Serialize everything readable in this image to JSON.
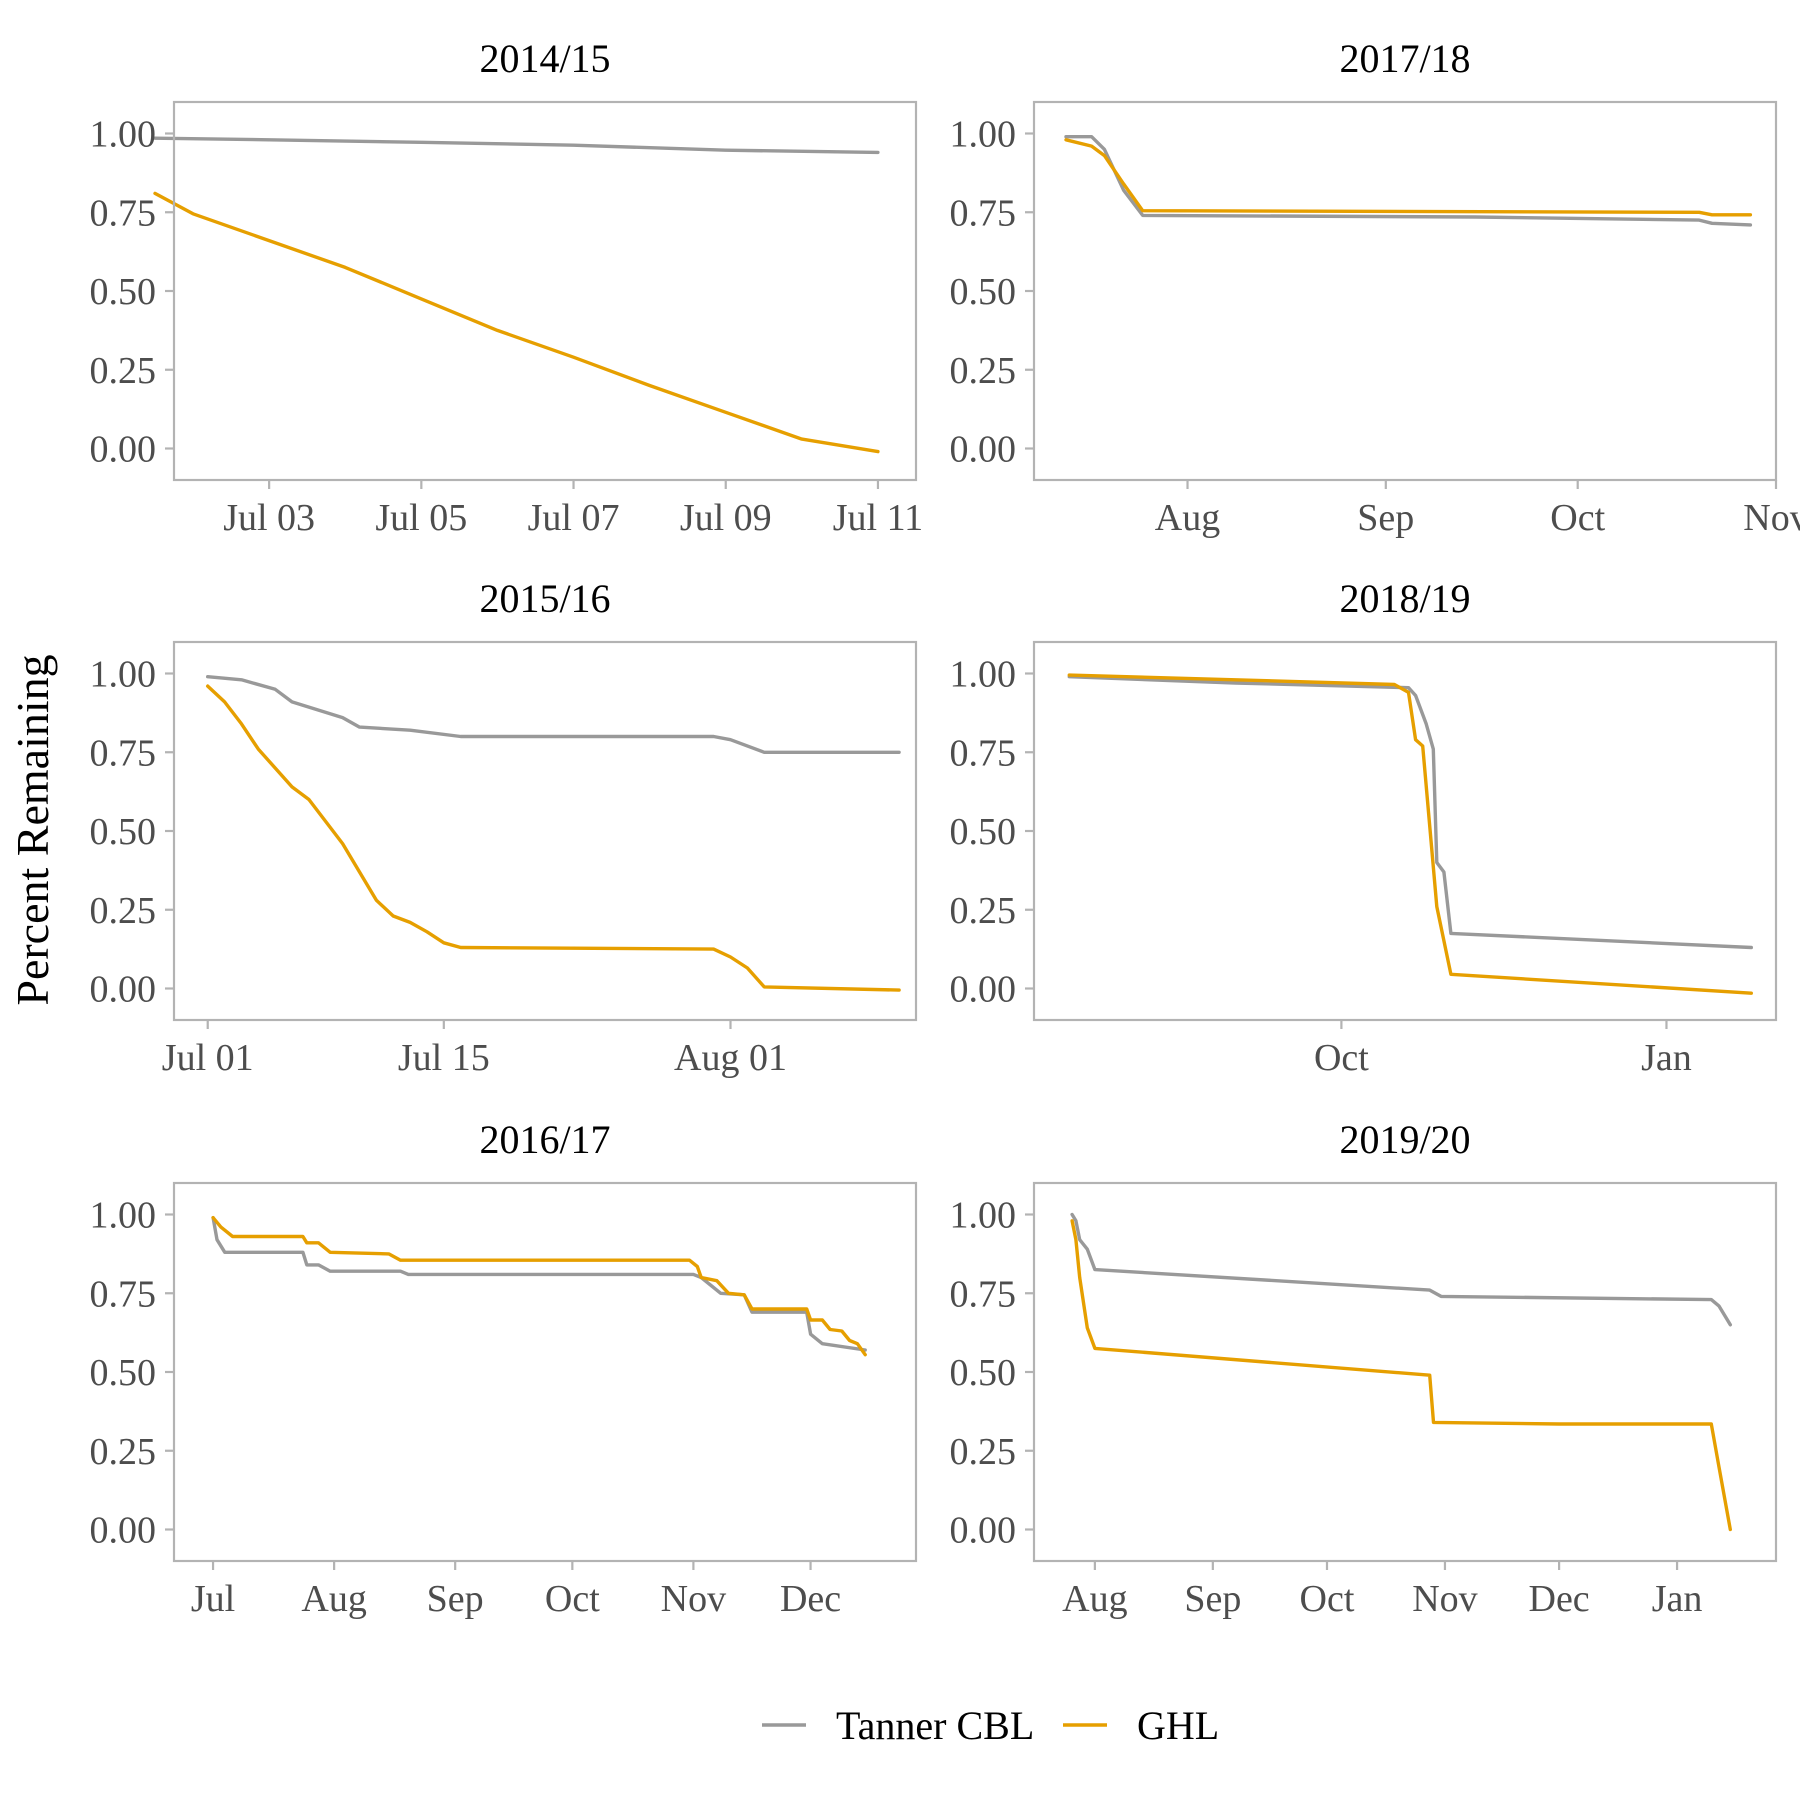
{
  "y_axis_label": "Percent Remaining",
  "colors": {
    "tanner_cbl": "#999999",
    "ghl": "#E69F00"
  },
  "legend": [
    {
      "label": "Tanner CBL",
      "color": "#999999"
    },
    {
      "label": "GHL",
      "color": "#E69F00"
    }
  ],
  "chart_data": [
    {
      "type": "line",
      "title": "2014/15",
      "x_type": "date",
      "xlim": [
        "2014-07-01T18:00",
        "2014-07-11T12:00"
      ],
      "ylim": [
        -0.1,
        1.1
      ],
      "xticks": [
        {
          "label": "Jul 03",
          "date": "2014-07-03"
        },
        {
          "label": "Jul 05",
          "date": "2014-07-05"
        },
        {
          "label": "Jul 07",
          "date": "2014-07-07"
        },
        {
          "label": "Jul 09",
          "date": "2014-07-09"
        },
        {
          "label": "Jul 11",
          "date": "2014-07-11"
        }
      ],
      "yticks": [
        "1.00",
        "0.75",
        "0.50",
        "0.25",
        "0.00"
      ],
      "series": [
        {
          "name": "Tanner CBL",
          "x": [
            "2014-07-01T12:00",
            "2014-07-03",
            "2014-07-05",
            "2014-07-07",
            "2014-07-09",
            "2014-07-11"
          ],
          "y": [
            0.985,
            0.98,
            0.972,
            0.963,
            0.947,
            0.94
          ]
        },
        {
          "name": "GHL",
          "x": [
            "2014-07-01T12:00",
            "2014-07-02",
            "2014-07-03",
            "2014-07-04",
            "2014-07-05",
            "2014-07-06",
            "2014-07-07",
            "2014-07-08",
            "2014-07-09",
            "2014-07-10",
            "2014-07-11"
          ],
          "y": [
            0.81,
            0.745,
            0.66,
            0.575,
            0.475,
            0.375,
            0.29,
            0.2,
            0.115,
            0.03,
            -0.01
          ]
        }
      ]
    },
    {
      "type": "line",
      "title": "2017/18",
      "x_type": "date",
      "xlim": [
        "2017-07-08",
        "2017-11-01"
      ],
      "ylim": [
        -0.1,
        1.1
      ],
      "xticks": [
        {
          "label": "Aug",
          "date": "2017-08-01"
        },
        {
          "label": "Sep",
          "date": "2017-09-01"
        },
        {
          "label": "Oct",
          "date": "2017-10-01"
        },
        {
          "label": "Nov",
          "date": "2017-11-01"
        }
      ],
      "yticks": [
        "1.00",
        "0.75",
        "0.50",
        "0.25",
        "0.00"
      ],
      "series": [
        {
          "name": "Tanner CBL",
          "x": [
            "2017-07-13",
            "2017-07-17",
            "2017-07-19",
            "2017-07-22",
            "2017-07-25",
            "2017-09-15",
            "2017-10-20",
            "2017-10-22",
            "2017-10-28"
          ],
          "y": [
            0.99,
            0.99,
            0.95,
            0.82,
            0.74,
            0.735,
            0.725,
            0.715,
            0.71
          ]
        },
        {
          "name": "GHL",
          "x": [
            "2017-07-13",
            "2017-07-17",
            "2017-07-19",
            "2017-07-22",
            "2017-07-25",
            "2017-10-20",
            "2017-10-22",
            "2017-10-28"
          ],
          "y": [
            0.98,
            0.96,
            0.93,
            0.84,
            0.755,
            0.75,
            0.742,
            0.742
          ]
        }
      ]
    },
    {
      "type": "line",
      "title": "2015/16",
      "x_type": "date",
      "xlim": [
        "2015-06-29",
        "2015-08-12"
      ],
      "ylim": [
        -0.1,
        1.1
      ],
      "xticks": [
        {
          "label": "Jul 01",
          "date": "2015-07-01"
        },
        {
          "label": "Jul 15",
          "date": "2015-07-15"
        },
        {
          "label": "Aug 01",
          "date": "2015-08-01"
        }
      ],
      "yticks": [
        "1.00",
        "0.75",
        "0.50",
        "0.25",
        "0.00"
      ],
      "series": [
        {
          "name": "Tanner CBL",
          "x": [
            "2015-07-01",
            "2015-07-03",
            "2015-07-05",
            "2015-07-06",
            "2015-07-09",
            "2015-07-10",
            "2015-07-13",
            "2015-07-16",
            "2015-07-31",
            "2015-08-01",
            "2015-08-03",
            "2015-08-11"
          ],
          "y": [
            0.99,
            0.98,
            0.95,
            0.91,
            0.86,
            0.83,
            0.82,
            0.8,
            0.8,
            0.79,
            0.75,
            0.75
          ]
        },
        {
          "name": "GHL",
          "x": [
            "2015-07-01",
            "2015-07-02",
            "2015-07-03",
            "2015-07-04",
            "2015-07-06",
            "2015-07-07",
            "2015-07-09",
            "2015-07-11",
            "2015-07-12",
            "2015-07-13",
            "2015-07-14",
            "2015-07-15",
            "2015-07-16",
            "2015-07-31",
            "2015-08-01",
            "2015-08-02",
            "2015-08-03",
            "2015-08-11"
          ],
          "y": [
            0.96,
            0.91,
            0.84,
            0.76,
            0.64,
            0.6,
            0.46,
            0.28,
            0.23,
            0.21,
            0.18,
            0.145,
            0.13,
            0.125,
            0.1,
            0.065,
            0.005,
            -0.005
          ]
        }
      ]
    },
    {
      "type": "line",
      "title": "2018/19",
      "x_type": "date",
      "xlim": [
        "2018-07-06",
        "2019-02-01"
      ],
      "ylim": [
        -0.1,
        1.1
      ],
      "xticks": [
        {
          "label": "Oct",
          "date": "2018-10-01"
        },
        {
          "label": "Jan",
          "date": "2019-01-01"
        }
      ],
      "yticks": [
        "1.00",
        "0.75",
        "0.50",
        "0.25",
        "0.00"
      ],
      "series": [
        {
          "name": "Tanner CBL",
          "x": [
            "2018-07-16",
            "2018-09-01",
            "2018-10-20",
            "2018-10-22",
            "2018-10-25",
            "2018-10-27",
            "2018-10-28",
            "2018-10-30",
            "2018-11-01",
            "2019-01-25"
          ],
          "y": [
            0.99,
            0.97,
            0.955,
            0.93,
            0.84,
            0.76,
            0.4,
            0.37,
            0.175,
            0.13
          ]
        },
        {
          "name": "GHL",
          "x": [
            "2018-07-16",
            "2018-09-01",
            "2018-10-16",
            "2018-10-20",
            "2018-10-22",
            "2018-10-24",
            "2018-10-28",
            "2018-11-01",
            "2019-01-25"
          ],
          "y": [
            0.995,
            0.98,
            0.965,
            0.94,
            0.79,
            0.77,
            0.26,
            0.045,
            -0.015
          ]
        }
      ]
    },
    {
      "type": "line",
      "title": "2016/17",
      "x_type": "date",
      "xlim": [
        "2016-06-21",
        "2016-12-28"
      ],
      "ylim": [
        -0.1,
        1.1
      ],
      "xticks": [
        {
          "label": "Jul",
          "date": "2016-07-01"
        },
        {
          "label": "Aug",
          "date": "2016-08-01"
        },
        {
          "label": "Sep",
          "date": "2016-09-01"
        },
        {
          "label": "Oct",
          "date": "2016-10-01"
        },
        {
          "label": "Nov",
          "date": "2016-11-01"
        },
        {
          "label": "Dec",
          "date": "2016-12-01"
        }
      ],
      "yticks": [
        "1.00",
        "0.75",
        "0.50",
        "0.25",
        "0.00"
      ],
      "series": [
        {
          "name": "Tanner CBL",
          "x": [
            "2016-07-01",
            "2016-07-02",
            "2016-07-04",
            "2016-07-24",
            "2016-07-25",
            "2016-07-28",
            "2016-07-31",
            "2016-08-18",
            "2016-08-20",
            "2016-11-01",
            "2016-11-03",
            "2016-11-08",
            "2016-11-14",
            "2016-11-16",
            "2016-11-30",
            "2016-12-01",
            "2016-12-04",
            "2016-12-15"
          ],
          "y": [
            0.99,
            0.92,
            0.88,
            0.88,
            0.84,
            0.84,
            0.82,
            0.82,
            0.81,
            0.81,
            0.8,
            0.75,
            0.745,
            0.69,
            0.69,
            0.62,
            0.59,
            0.57
          ]
        },
        {
          "name": "GHL",
          "x": [
            "2016-07-01",
            "2016-07-03",
            "2016-07-06",
            "2016-07-24",
            "2016-07-25",
            "2016-07-28",
            "2016-07-31",
            "2016-08-15",
            "2016-08-18",
            "2016-10-31",
            "2016-11-02",
            "2016-11-03",
            "2016-11-07",
            "2016-11-10",
            "2016-11-14",
            "2016-11-16",
            "2016-11-30",
            "2016-12-01",
            "2016-12-04",
            "2016-12-06",
            "2016-12-09",
            "2016-12-11",
            "2016-12-13",
            "2016-12-15"
          ],
          "y": [
            0.99,
            0.96,
            0.93,
            0.93,
            0.91,
            0.91,
            0.88,
            0.875,
            0.855,
            0.855,
            0.835,
            0.8,
            0.79,
            0.75,
            0.745,
            0.7,
            0.7,
            0.665,
            0.665,
            0.635,
            0.63,
            0.6,
            0.59,
            0.555
          ]
        }
      ]
    },
    {
      "type": "line",
      "title": "2019/20",
      "x_type": "date",
      "xlim": [
        "2019-07-16",
        "2020-01-27"
      ],
      "ylim": [
        -0.1,
        1.1
      ],
      "xticks": [
        {
          "label": "Aug",
          "date": "2019-08-01"
        },
        {
          "label": "Sep",
          "date": "2019-09-01"
        },
        {
          "label": "Oct",
          "date": "2019-10-01"
        },
        {
          "label": "Nov",
          "date": "2019-11-01"
        },
        {
          "label": "Dec",
          "date": "2019-12-01"
        },
        {
          "label": "Jan",
          "date": "2020-01-01"
        }
      ],
      "yticks": [
        "1.00",
        "0.75",
        "0.50",
        "0.25",
        "0.00"
      ],
      "series": [
        {
          "name": "Tanner CBL",
          "x": [
            "2019-07-26",
            "2019-07-27",
            "2019-07-28",
            "2019-07-30",
            "2019-08-01",
            "2019-10-28",
            "2019-10-31",
            "2020-01-10",
            "2020-01-12",
            "2020-01-15"
          ],
          "y": [
            1.0,
            0.98,
            0.92,
            0.89,
            0.825,
            0.76,
            0.74,
            0.73,
            0.71,
            0.65
          ]
        },
        {
          "name": "GHL",
          "x": [
            "2019-07-26",
            "2019-07-27",
            "2019-07-28",
            "2019-07-30",
            "2019-08-01",
            "2019-10-28",
            "2019-10-29",
            "2019-12-01",
            "2020-01-10",
            "2020-01-12",
            "2020-01-15"
          ],
          "y": [
            0.98,
            0.92,
            0.8,
            0.64,
            0.575,
            0.49,
            0.34,
            0.335,
            0.335,
            0.2,
            0.0
          ]
        }
      ]
    }
  ]
}
